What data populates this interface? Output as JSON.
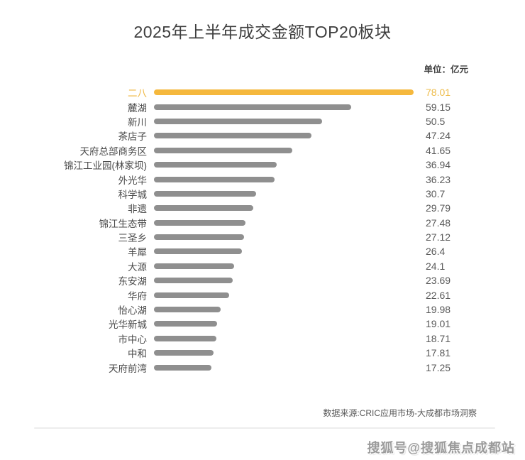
{
  "page": {
    "title": "2025年上半年成交金额TOP20板块",
    "unit_label": "单位：亿元",
    "source": "数据来源:CRIC应用市场-大成都市场洞察",
    "watermark": "搜狐号@搜狐焦点成都站"
  },
  "colors": {
    "highlight_bar": "#f5b83d",
    "highlight_text": "#eebc4a",
    "bar_gray": "#8f8f8f",
    "label_gray": "#4a4a4a",
    "value_gray": "#595959",
    "title_gray": "#3e3e3e"
  },
  "chart_data": {
    "type": "bar",
    "orientation": "horizontal",
    "title": "2025年上半年成交金额TOP20板块",
    "unit": "亿元",
    "legend": false,
    "grid": false,
    "xlim": [
      0,
      80
    ],
    "highlight_index": 0,
    "categories": [
      "二八",
      "麓湖",
      "新川",
      "茶店子",
      "天府总部商务区",
      "锦江工业园(林家坝)",
      "外光华",
      "科学城",
      "非遗",
      "锦江生态带",
      "三圣乡",
      "羊犀",
      "大源",
      "东安湖",
      "华府",
      "怡心湖",
      "光华新城",
      "市中心",
      "中和",
      "天府前湾"
    ],
    "values": [
      78.01,
      59.15,
      50.5,
      47.24,
      41.65,
      36.94,
      36.23,
      30.7,
      29.79,
      27.48,
      27.12,
      26.4,
      24.1,
      23.69,
      22.61,
      19.98,
      19.01,
      18.71,
      17.81,
      17.25
    ]
  }
}
